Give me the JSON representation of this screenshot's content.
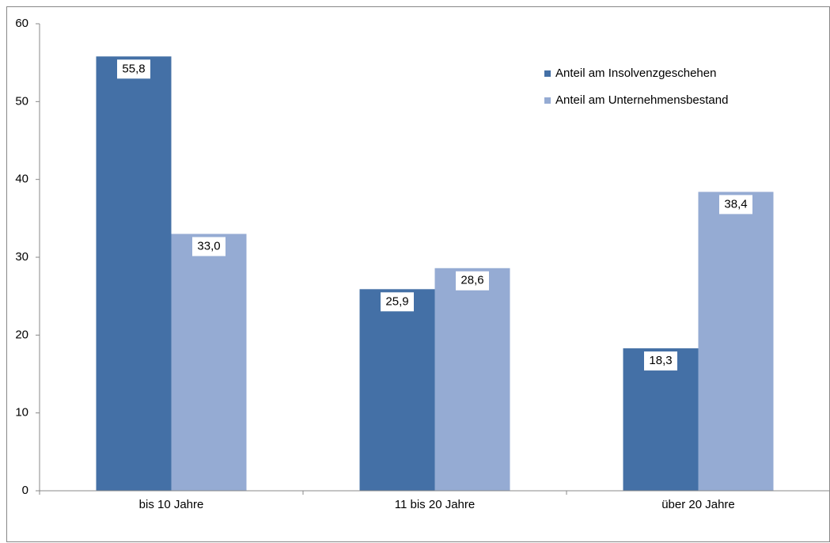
{
  "chart_data": {
    "type": "bar",
    "categories": [
      "bis 10 Jahre",
      "11 bis 20 Jahre",
      "über 20 Jahre"
    ],
    "series": [
      {
        "name": "Anteil am Insolvenzgeschehen",
        "color": "#4470a6",
        "values": [
          55.8,
          25.9,
          18.3
        ],
        "value_labels": [
          "55,8",
          "25,9",
          "18,3"
        ]
      },
      {
        "name": "Anteil am Unternehmensbestand",
        "color": "#95abd3",
        "values": [
          33.0,
          28.6,
          38.4
        ],
        "value_labels": [
          "33,0",
          "28,6",
          "38,4"
        ]
      }
    ],
    "ylim": [
      0,
      60
    ],
    "yticks": [
      0,
      10,
      20,
      30,
      40,
      50,
      60
    ],
    "grid": false,
    "legend": "top-right"
  }
}
